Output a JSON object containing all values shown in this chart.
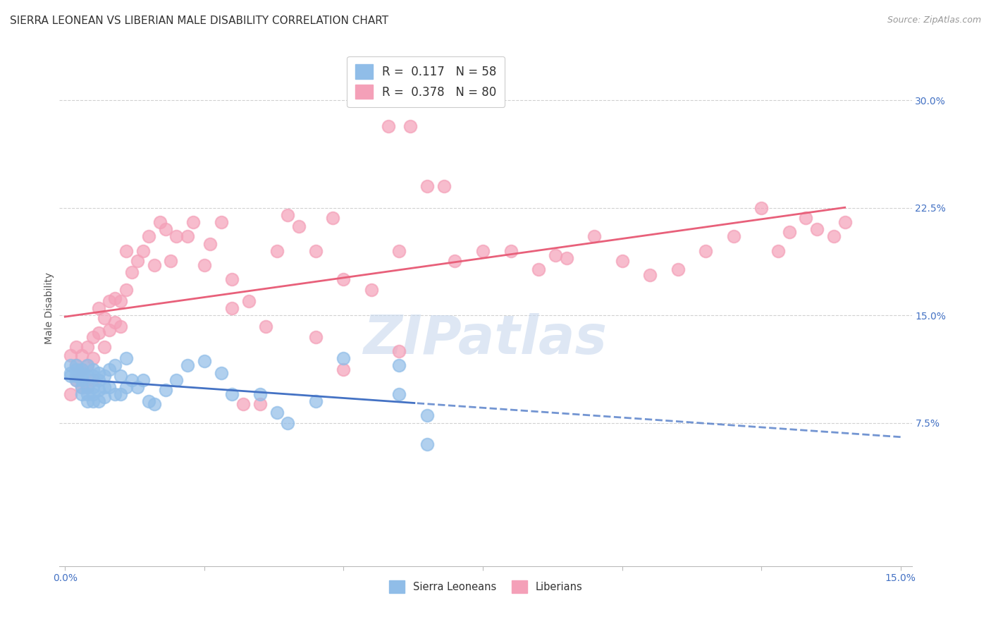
{
  "title": "SIERRA LEONEAN VS LIBERIAN MALE DISABILITY CORRELATION CHART",
  "source": "Source: ZipAtlas.com",
  "ylabel": "Male Disability",
  "xlim": [
    -0.001,
    0.152
  ],
  "ylim": [
    -0.025,
    0.335
  ],
  "ytick_positions": [
    0.075,
    0.15,
    0.225,
    0.3
  ],
  "ytick_labels": [
    "7.5%",
    "15.0%",
    "22.5%",
    "30.0%"
  ],
  "xtick_positions": [
    0.0,
    0.025,
    0.05,
    0.075,
    0.1,
    0.125,
    0.15
  ],
  "xtick_labels": [
    "0.0%",
    "",
    "",
    "",
    "",
    "",
    "15.0%"
  ],
  "sierra_color": "#90BDE8",
  "liberian_color": "#F4A0B8",
  "sierra_line_color": "#4472C4",
  "liberian_line_color": "#E8607A",
  "background_color": "#FFFFFF",
  "grid_color": "#CCCCCC",
  "watermark": "ZIPatlas",
  "title_fontsize": 11,
  "tick_label_color": "#4472C4",
  "sierra_x": [
    0.001,
    0.001,
    0.001,
    0.002,
    0.002,
    0.002,
    0.002,
    0.003,
    0.003,
    0.003,
    0.003,
    0.003,
    0.003,
    0.004,
    0.004,
    0.004,
    0.004,
    0.004,
    0.005,
    0.005,
    0.005,
    0.005,
    0.005,
    0.006,
    0.006,
    0.006,
    0.006,
    0.007,
    0.007,
    0.007,
    0.008,
    0.008,
    0.009,
    0.009,
    0.01,
    0.01,
    0.011,
    0.011,
    0.012,
    0.013,
    0.014,
    0.015,
    0.016,
    0.018,
    0.02,
    0.022,
    0.025,
    0.028,
    0.03,
    0.035,
    0.038,
    0.04,
    0.045,
    0.05,
    0.06,
    0.065,
    0.06,
    0.065
  ],
  "sierra_y": [
    0.11,
    0.115,
    0.108,
    0.112,
    0.105,
    0.115,
    0.108,
    0.112,
    0.108,
    0.1,
    0.095,
    0.11,
    0.105,
    0.115,
    0.108,
    0.1,
    0.095,
    0.09,
    0.112,
    0.108,
    0.1,
    0.095,
    0.09,
    0.11,
    0.105,
    0.098,
    0.09,
    0.108,
    0.1,
    0.093,
    0.112,
    0.1,
    0.115,
    0.095,
    0.108,
    0.095,
    0.12,
    0.1,
    0.105,
    0.1,
    0.105,
    0.09,
    0.088,
    0.098,
    0.105,
    0.115,
    0.118,
    0.11,
    0.095,
    0.095,
    0.082,
    0.075,
    0.09,
    0.12,
    0.115,
    0.06,
    0.095,
    0.08
  ],
  "liberian_x": [
    0.001,
    0.001,
    0.002,
    0.002,
    0.002,
    0.003,
    0.003,
    0.003,
    0.004,
    0.004,
    0.004,
    0.005,
    0.005,
    0.005,
    0.006,
    0.006,
    0.007,
    0.007,
    0.008,
    0.008,
    0.009,
    0.009,
    0.01,
    0.01,
    0.011,
    0.011,
    0.012,
    0.013,
    0.014,
    0.015,
    0.016,
    0.017,
    0.018,
    0.019,
    0.02,
    0.022,
    0.023,
    0.025,
    0.026,
    0.028,
    0.03,
    0.032,
    0.033,
    0.035,
    0.036,
    0.038,
    0.04,
    0.042,
    0.045,
    0.048,
    0.05,
    0.055,
    0.058,
    0.06,
    0.062,
    0.065,
    0.068,
    0.07,
    0.075,
    0.08,
    0.085,
    0.088,
    0.09,
    0.095,
    0.1,
    0.105,
    0.11,
    0.115,
    0.12,
    0.125,
    0.128,
    0.13,
    0.133,
    0.135,
    0.138,
    0.14,
    0.03,
    0.045,
    0.05,
    0.06
  ],
  "liberian_y": [
    0.122,
    0.095,
    0.128,
    0.105,
    0.115,
    0.122,
    0.112,
    0.1,
    0.128,
    0.115,
    0.1,
    0.135,
    0.12,
    0.105,
    0.155,
    0.138,
    0.148,
    0.128,
    0.16,
    0.14,
    0.162,
    0.145,
    0.16,
    0.142,
    0.195,
    0.168,
    0.18,
    0.188,
    0.195,
    0.205,
    0.185,
    0.215,
    0.21,
    0.188,
    0.205,
    0.205,
    0.215,
    0.185,
    0.2,
    0.215,
    0.175,
    0.088,
    0.16,
    0.088,
    0.142,
    0.195,
    0.22,
    0.212,
    0.195,
    0.218,
    0.175,
    0.168,
    0.282,
    0.195,
    0.282,
    0.24,
    0.24,
    0.188,
    0.195,
    0.195,
    0.182,
    0.192,
    0.19,
    0.205,
    0.188,
    0.178,
    0.182,
    0.195,
    0.205,
    0.225,
    0.195,
    0.208,
    0.218,
    0.21,
    0.205,
    0.215,
    0.155,
    0.135,
    0.112,
    0.125
  ]
}
